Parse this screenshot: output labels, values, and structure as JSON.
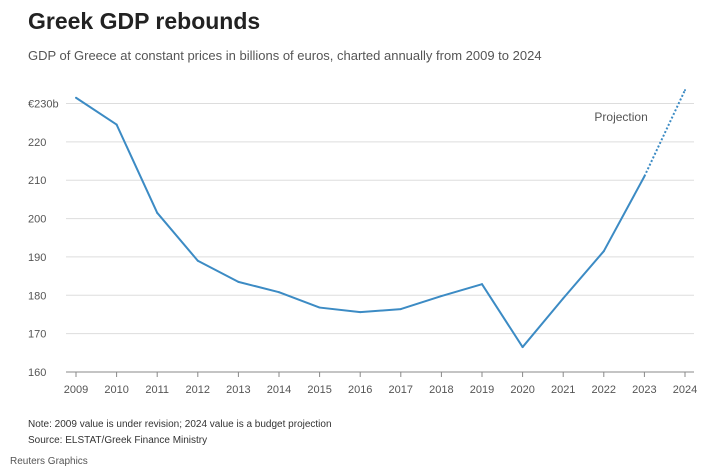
{
  "title": "Greek GDP rebounds",
  "subtitle": "GDP of Greece at constant prices in billions of euros, charted annually from 2009 to 2024",
  "note": "Note: 2009 value is under revision; 2024 value is a budget projection",
  "source": "Source: ELSTAT/Greek Finance Ministry",
  "credit": "Reuters Graphics",
  "colors": {
    "line": "#3c8bc4",
    "grid": "#dddddd",
    "axis": "#888888",
    "text": "#555555"
  },
  "chart_data": {
    "type": "line",
    "title": "Greek GDP rebounds",
    "subtitle": "GDP of Greece at constant prices in billions of euros, charted annually from 2009 to 2024",
    "x": [
      2009,
      2010,
      2011,
      2012,
      2013,
      2014,
      2015,
      2016,
      2017,
      2018,
      2019,
      2020,
      2021,
      2022,
      2023,
      2024
    ],
    "series": [
      {
        "values": [
          231.5,
          224.5,
          201.5,
          189.0,
          183.5,
          180.8,
          176.8,
          175.6,
          176.4,
          179.8,
          182.9,
          166.5,
          179.2,
          191.5,
          211.0,
          233.5
        ],
        "projected_from_index": 14
      }
    ],
    "annotation": "Projection",
    "ylim": [
      160,
      235
    ],
    "yticks": [
      160,
      170,
      180,
      190,
      200,
      210,
      220,
      230
    ],
    "ytick_labels": [
      "160",
      "170",
      "180",
      "190",
      "200",
      "210",
      "220",
      "€230b"
    ],
    "grid": true
  }
}
